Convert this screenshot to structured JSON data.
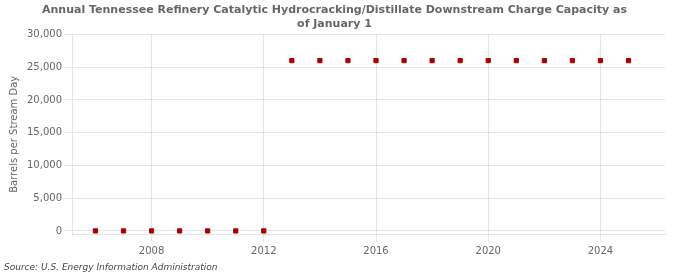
{
  "chart_data": {
    "type": "scatter",
    "title": "Annual Tennessee Refinery Catalytic Hydrocracking/Distillate Downstream Charge Capacity as\nof January 1",
    "y_label": "Barrels per Stream Day",
    "annotations": [
      "Source: U.S. Energy Information Administration"
    ],
    "x": [
      2006,
      2007,
      2008,
      2009,
      2010,
      2011,
      2012,
      2013,
      2014,
      2015,
      2016,
      2017,
      2018,
      2019,
      2020,
      2021,
      2022,
      2023,
      2024,
      2025
    ],
    "values": [
      0,
      0,
      0,
      0,
      0,
      0,
      0,
      26000,
      26000,
      26000,
      26000,
      26000,
      26000,
      26000,
      26000,
      26000,
      26000,
      26000,
      26000,
      26000
    ],
    "color": "#aa0000",
    "marker": "square",
    "xlim": [
      2005.2,
      2026.3
    ],
    "xticks": [
      2008,
      2012,
      2016,
      2020,
      2024
    ],
    "ylim": [
      -500,
      30000
    ],
    "yticks": [
      0,
      {
        "value": 5000,
        "label": "5,000"
      },
      {
        "value": 10000,
        "label": "10,000"
      },
      {
        "value": 15000,
        "label": "15,000"
      },
      {
        "value": 20000,
        "label": "20,000"
      },
      {
        "value": 25000,
        "label": "25,000"
      },
      {
        "value": 30000,
        "label": "30,000"
      }
    ],
    "grid": true
  }
}
